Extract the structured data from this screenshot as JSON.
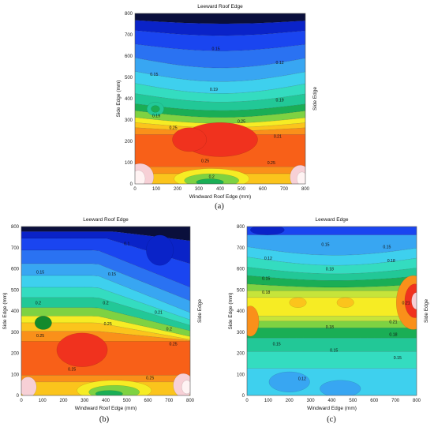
{
  "chart_data": [
    {
      "type": "heatmap",
      "panel_label": "(a)",
      "title": "Leeward Roof Edge",
      "xlabel": "Windward Roof Edge (mm)",
      "ylabel": "Side Edge (mm)",
      "right_label": "Side Edge",
      "xlim": [
        0,
        800
      ],
      "ylim": [
        0,
        800
      ],
      "x_ticks": [
        "0",
        "100",
        "200",
        "300",
        "400",
        "500",
        "600",
        "700",
        "800"
      ],
      "y_ticks": [
        "0",
        "100",
        "200",
        "300",
        "400",
        "500",
        "600",
        "700",
        "800"
      ],
      "contour_labels": [
        {
          "text": "0.15",
          "x": 380,
          "y": 635
        },
        {
          "text": "0.12",
          "x": 680,
          "y": 570
        },
        {
          "text": "0.15",
          "x": 90,
          "y": 515
        },
        {
          "text": "0.19",
          "x": 370,
          "y": 445
        },
        {
          "text": "0.19",
          "x": 680,
          "y": 395
        },
        {
          "text": "0.19",
          "x": 100,
          "y": 320
        },
        {
          "text": "0.25",
          "x": 500,
          "y": 295
        },
        {
          "text": "0.25",
          "x": 180,
          "y": 265
        },
        {
          "text": "0.21",
          "x": 670,
          "y": 225
        },
        {
          "text": "0.25",
          "x": 330,
          "y": 110
        },
        {
          "text": "0.25",
          "x": 640,
          "y": 100
        },
        {
          "text": "0.2",
          "x": 360,
          "y": 35
        }
      ]
    },
    {
      "type": "heatmap",
      "panel_label": "(b)",
      "title": "Leeward Roof Edge",
      "xlabel": "Windward Roof Edge (mm)",
      "ylabel": "Side Edge (mm)",
      "right_label": "Side Edge",
      "xlim": [
        0,
        800
      ],
      "ylim": [
        0,
        800
      ],
      "x_ticks": [
        "0",
        "100",
        "200",
        "300",
        "400",
        "500",
        "600",
        "700",
        "800"
      ],
      "y_ticks": [
        "0",
        "100",
        "200",
        "300",
        "400",
        "500",
        "600",
        "700",
        "800"
      ],
      "contour_labels": [
        {
          "text": "0.1",
          "x": 500,
          "y": 720
        },
        {
          "text": "0.15",
          "x": 90,
          "y": 585
        },
        {
          "text": "0.15",
          "x": 430,
          "y": 575
        },
        {
          "text": "0.2",
          "x": 80,
          "y": 440
        },
        {
          "text": "0.2",
          "x": 400,
          "y": 440
        },
        {
          "text": "0.21",
          "x": 650,
          "y": 395
        },
        {
          "text": "0.25",
          "x": 410,
          "y": 340
        },
        {
          "text": "0.2",
          "x": 700,
          "y": 315
        },
        {
          "text": "0.25",
          "x": 90,
          "y": 285
        },
        {
          "text": "0.25",
          "x": 720,
          "y": 245
        },
        {
          "text": "0.25",
          "x": 240,
          "y": 125
        },
        {
          "text": "0.25",
          "x": 610,
          "y": 85
        }
      ]
    },
    {
      "type": "heatmap",
      "panel_label": "(c)",
      "title": "Leeward Edge",
      "xlabel": "Windward Edge (mm)",
      "ylabel": "Side Edge (mm)",
      "right_label": "Side Edge",
      "xlim": [
        0,
        800
      ],
      "ylim": [
        0,
        800
      ],
      "x_ticks": [
        "0",
        "100",
        "200",
        "300",
        "400",
        "500",
        "600",
        "700",
        "800"
      ],
      "y_ticks": [
        "0",
        "100",
        "200",
        "300",
        "400",
        "500",
        "600",
        "700",
        "800"
      ],
      "contour_labels": [
        {
          "text": "0.15",
          "x": 370,
          "y": 715
        },
        {
          "text": "0.15",
          "x": 660,
          "y": 705
        },
        {
          "text": "0.12",
          "x": 100,
          "y": 650
        },
        {
          "text": "0.18",
          "x": 680,
          "y": 640
        },
        {
          "text": "0.18",
          "x": 390,
          "y": 600
        },
        {
          "text": "0.15",
          "x": 90,
          "y": 555
        },
        {
          "text": "0.18",
          "x": 90,
          "y": 490
        },
        {
          "text": "0.21",
          "x": 750,
          "y": 440
        },
        {
          "text": "0.21",
          "x": 690,
          "y": 350
        },
        {
          "text": "0.18",
          "x": 390,
          "y": 325
        },
        {
          "text": "0.18",
          "x": 690,
          "y": 290
        },
        {
          "text": "0.15",
          "x": 140,
          "y": 245
        },
        {
          "text": "0.15",
          "x": 410,
          "y": 215
        },
        {
          "text": "0.15",
          "x": 710,
          "y": 180
        },
        {
          "text": "0.12",
          "x": 260,
          "y": 80
        }
      ]
    }
  ]
}
